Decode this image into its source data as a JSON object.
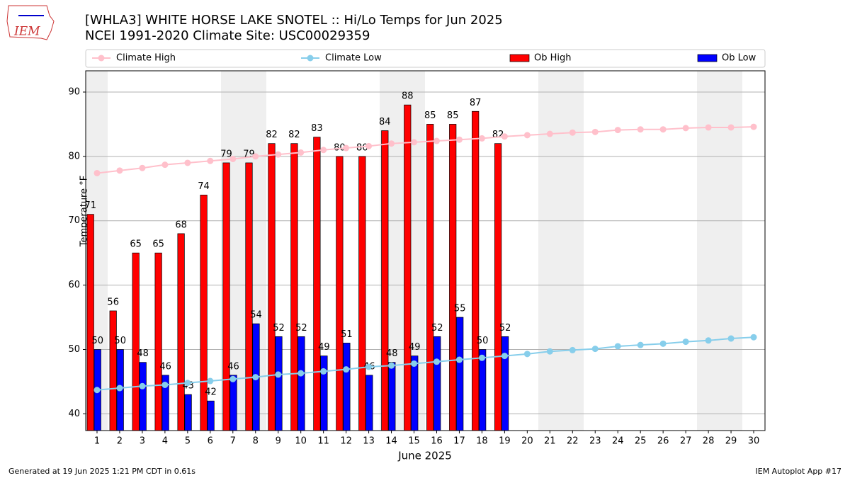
{
  "header": {
    "logo": "IEM"
  },
  "chart_data": {
    "type": "bar",
    "title": "[WHLA3] WHITE HORSE LAKE SNOTEL :: Hi/Lo Temps for Jun 2025",
    "subtitle": "NCEI 1991-2020 Climate Site: USC00029359",
    "xlabel": "June 2025",
    "ylabel": "Temperature °F",
    "categories": [
      "1",
      "2",
      "3",
      "4",
      "5",
      "6",
      "7",
      "8",
      "9",
      "10",
      "11",
      "12",
      "13",
      "14",
      "15",
      "16",
      "17",
      "18",
      "19",
      "20",
      "21",
      "22",
      "23",
      "24",
      "25",
      "26",
      "27",
      "28",
      "29",
      "30"
    ],
    "series": [
      {
        "name": "Climate High",
        "color": "#ffc0cb",
        "type": "line",
        "values": [
          77.4,
          77.8,
          78.2,
          78.7,
          79.0,
          79.3,
          79.6,
          80.0,
          80.3,
          80.6,
          81.0,
          81.3,
          81.6,
          82.0,
          82.2,
          82.4,
          82.6,
          82.8,
          83.1,
          83.3,
          83.5,
          83.7,
          83.8,
          84.1,
          84.2,
          84.2,
          84.4,
          84.5,
          84.5,
          84.6
        ]
      },
      {
        "name": "Climate Low",
        "color": "#87ceeb",
        "type": "line",
        "values": [
          43.7,
          44.0,
          44.3,
          44.5,
          44.8,
          45.1,
          45.4,
          45.7,
          46.1,
          46.3,
          46.6,
          46.9,
          47.3,
          47.5,
          47.8,
          48.1,
          48.4,
          48.7,
          49.0,
          49.3,
          49.7,
          49.9,
          50.1,
          50.5,
          50.7,
          50.9,
          51.2,
          51.4,
          51.7,
          51.9
        ]
      },
      {
        "name": "Ob High",
        "color": "#ff0000",
        "type": "bar",
        "values": [
          71,
          56,
          65,
          65,
          68,
          74,
          79,
          79,
          82,
          82,
          83,
          80,
          80,
          84,
          88,
          85,
          85,
          87,
          82,
          null,
          null,
          null,
          null,
          null,
          null,
          null,
          null,
          null,
          null,
          null
        ]
      },
      {
        "name": "Ob Low",
        "color": "#0000ff",
        "type": "bar",
        "values": [
          50,
          50,
          48,
          46,
          43,
          42,
          46,
          54,
          52,
          52,
          49,
          51,
          46,
          48,
          49,
          52,
          55,
          50,
          52,
          null,
          null,
          null,
          null,
          null,
          null,
          null,
          null,
          null,
          null,
          null
        ]
      }
    ],
    "ylim": [
      37.4,
      93.3
    ],
    "yticks": [
      40,
      50,
      60,
      70,
      80,
      90
    ],
    "grid": true,
    "legend": "top"
  },
  "footer": {
    "left": "Generated at 19 Jun 2025 1:21 PM CDT in 0.61s",
    "right": "IEM Autoplot App #17"
  }
}
